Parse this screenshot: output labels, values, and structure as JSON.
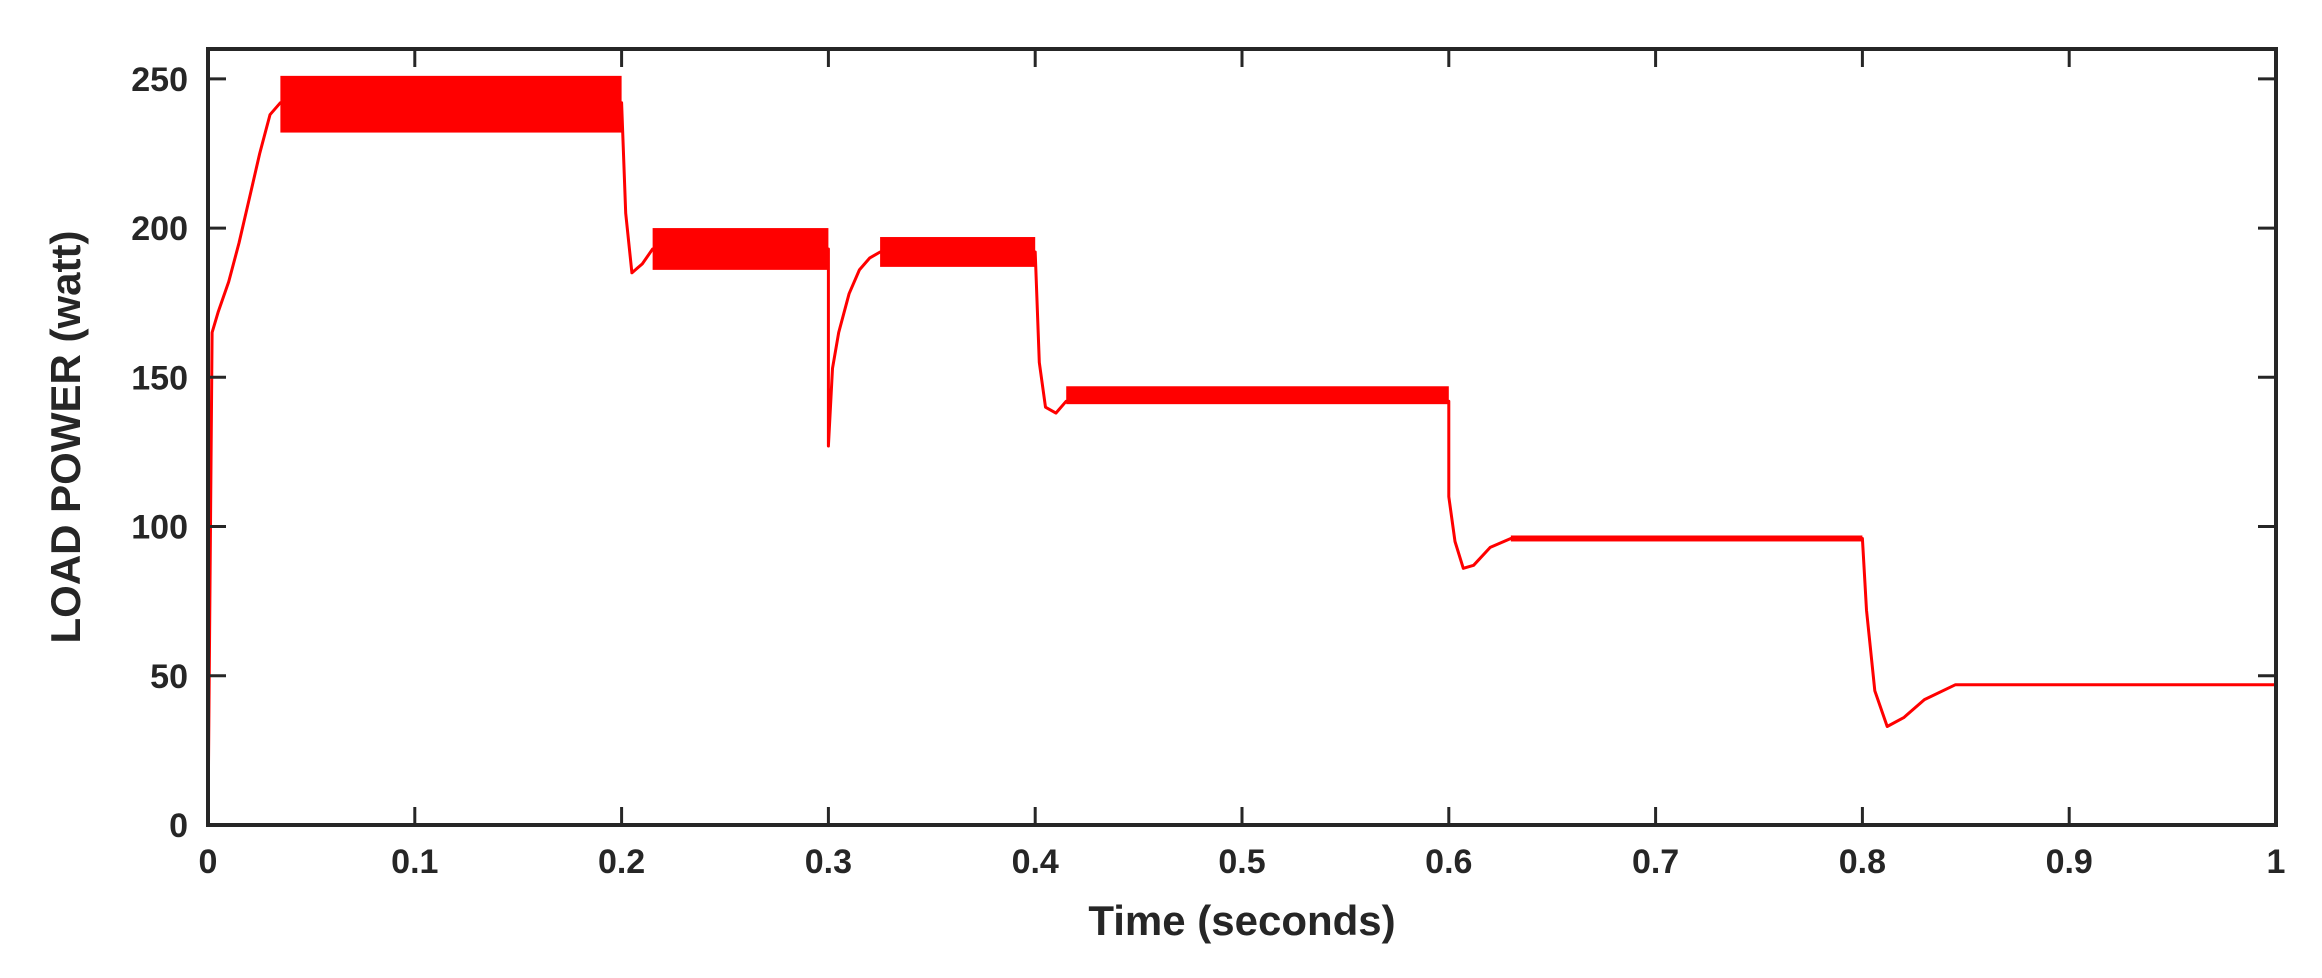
{
  "chart_data": {
    "type": "line",
    "title": "",
    "xlabel": "Time (seconds)",
    "ylabel": "LOAD POWER (watt)",
    "xlim": [
      0,
      1
    ],
    "ylim": [
      0,
      260
    ],
    "xticks": [
      "0",
      "0.1",
      "0.2",
      "0.3",
      "0.4",
      "0.5",
      "0.6",
      "0.7",
      "0.8",
      "0.9",
      "1"
    ],
    "yticks": [
      "0",
      "50",
      "100",
      "150",
      "200",
      "250"
    ],
    "grid": false,
    "box": true,
    "line_color": "#ff0000",
    "series": [
      {
        "name": "",
        "x": [
          0,
          0.002,
          0.005,
          0.01,
          0.015,
          0.02,
          0.025,
          0.03,
          0.035,
          0.2,
          0.202,
          0.205,
          0.21,
          0.215,
          0.3,
          0.3,
          0.302,
          0.305,
          0.31,
          0.315,
          0.32,
          0.325,
          0.4,
          0.402,
          0.405,
          0.41,
          0.415,
          0.6,
          0.6,
          0.603,
          0.607,
          0.612,
          0.62,
          0.63,
          0.8,
          0.802,
          0.806,
          0.812,
          0.82,
          0.83,
          0.845,
          1.0
        ],
        "y": [
          0,
          165,
          172,
          182,
          195,
          210,
          225,
          238,
          242,
          242,
          205,
          185,
          188,
          193,
          193,
          127,
          153,
          165,
          178,
          186,
          190,
          192,
          192,
          155,
          140,
          138,
          142,
          142,
          110,
          95,
          86,
          87,
          93,
          96,
          96,
          72,
          45,
          33,
          36,
          42,
          47,
          47
        ]
      }
    ],
    "ripple_bands": [
      {
        "x_start": 0.035,
        "x_end": 0.2,
        "y_low": 232,
        "y_high": 251
      },
      {
        "x_start": 0.215,
        "x_end": 0.3,
        "y_low": 186,
        "y_high": 200
      },
      {
        "x_start": 0.325,
        "x_end": 0.4,
        "y_low": 187,
        "y_high": 197
      },
      {
        "x_start": 0.415,
        "x_end": 0.6,
        "y_low": 141,
        "y_high": 147
      },
      {
        "x_start": 0.63,
        "x_end": 0.8,
        "y_low": 95,
        "y_high": 97
      }
    ]
  }
}
